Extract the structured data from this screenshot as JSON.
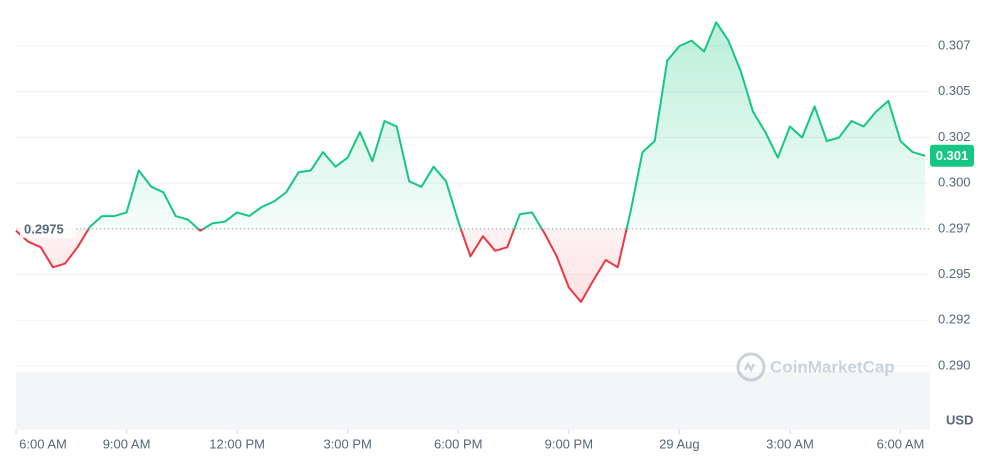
{
  "chart_data": {
    "type": "line",
    "x": [
      0,
      0.33,
      0.67,
      1,
      1.33,
      1.67,
      2,
      2.33,
      2.67,
      3,
      3.33,
      3.67,
      4,
      4.33,
      4.67,
      5,
      5.33,
      5.67,
      6,
      6.33,
      6.67,
      7,
      7.33,
      7.67,
      8,
      8.33,
      8.67,
      9,
      9.33,
      9.67,
      10,
      10.33,
      10.67,
      11,
      11.33,
      11.67,
      12,
      12.33,
      12.67,
      13,
      13.33,
      13.67,
      14,
      14.33,
      14.67,
      15,
      15.33,
      15.67,
      16,
      16.33,
      16.67,
      17,
      17.33,
      17.67,
      18,
      18.33,
      18.67,
      19,
      19.33,
      19.67,
      20,
      20.33,
      20.67,
      21,
      21.33,
      21.67,
      22,
      22.33,
      22.67,
      23,
      23.33,
      23.67,
      24,
      24.33,
      24.67
    ],
    "values": [
      0.2974,
      0.2968,
      0.2965,
      0.2954,
      0.2956,
      0.2965,
      0.2976,
      0.2982,
      0.2982,
      0.2984,
      0.3007,
      0.2998,
      0.2995,
      0.2982,
      0.298,
      0.2974,
      0.2978,
      0.2979,
      0.2984,
      0.2982,
      0.2987,
      0.299,
      0.2995,
      0.3006,
      0.3007,
      0.3017,
      0.3009,
      0.3014,
      0.3028,
      0.3012,
      0.3034,
      0.3031,
      0.3001,
      0.2998,
      0.3009,
      0.3001,
      0.2979,
      0.296,
      0.2971,
      0.2963,
      0.2965,
      0.2983,
      0.2984,
      0.2973,
      0.296,
      0.2943,
      0.2935,
      0.2947,
      0.2958,
      0.2954,
      0.2984,
      0.3017,
      0.3023,
      0.3067,
      0.3075,
      0.3078,
      0.3072,
      0.3088,
      0.3078,
      0.3061,
      0.3039,
      0.3028,
      0.3014,
      0.3031,
      0.3025,
      0.3042,
      0.3023,
      0.3025,
      0.3034,
      0.3031,
      0.3039,
      0.3045,
      0.3023,
      0.3017,
      0.3015
    ],
    "xlim": [
      0,
      24.8
    ],
    "xticks": [
      {
        "value": 0,
        "label": "6:00 AM"
      },
      {
        "value": 3,
        "label": "9:00 AM"
      },
      {
        "value": 6,
        "label": "12:00 PM"
      },
      {
        "value": 9,
        "label": "3:00 PM"
      },
      {
        "value": 12,
        "label": "6:00 PM"
      },
      {
        "value": 15,
        "label": "9:00 PM"
      },
      {
        "value": 18,
        "label": "29 Aug"
      },
      {
        "value": 21,
        "label": "3:00 AM"
      },
      {
        "value": 24,
        "label": "6:00 AM"
      }
    ],
    "ylim": [
      0.2865,
      0.3098
    ],
    "yticks": [
      {
        "value": 0.29,
        "label": "0.290"
      },
      {
        "value": 0.2925,
        "label": "0.292"
      },
      {
        "value": 0.295,
        "label": "0.295"
      },
      {
        "value": 0.2975,
        "label": "0.297"
      },
      {
        "value": 0.3,
        "label": "0.300"
      },
      {
        "value": 0.3025,
        "label": "0.302"
      },
      {
        "value": 0.305,
        "label": "0.305"
      },
      {
        "value": 0.3075,
        "label": "0.307"
      }
    ],
    "baseline": 0.2975,
    "current_price_label": "0.301",
    "currency": "USD",
    "watermark": "CoinMarketCap",
    "up_color": "#16c784",
    "down_color": "#ea3943",
    "grid": true
  }
}
